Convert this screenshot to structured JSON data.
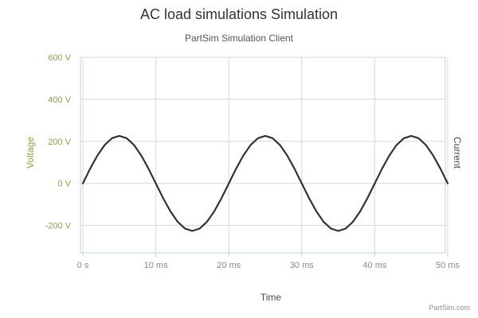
{
  "title": "AC load simulations Simulation",
  "subtitle": "PartSim Simulation Client",
  "credit": "PartSim.com",
  "colors": {
    "voltage_axis": "#89A54E",
    "current_axis": "#4A4A4A",
    "series_line": "#333333",
    "grid": "#D8D8D8",
    "axis_line": "#C0D0E0"
  },
  "chart_data": {
    "type": "line",
    "title": "AC load simulations Simulation",
    "subtitle": "PartSim Simulation Client",
    "xlabel": "Time",
    "ylabel": "Voltage",
    "ylabel_right": "Current",
    "x_unit": "ms",
    "y_unit": "V",
    "xlim": [
      0,
      50
    ],
    "ylim": [
      -330,
      600
    ],
    "x_ticks": [
      "0 s",
      "10 ms",
      "20 ms",
      "30 ms",
      "40 ms",
      "50 ms"
    ],
    "x_tick_values": [
      0,
      10,
      20,
      30,
      40,
      50
    ],
    "y_ticks": [
      "600 V",
      "400 V",
      "200 V",
      "0 V",
      "-200 V"
    ],
    "y_tick_values": [
      600,
      400,
      200,
      0,
      -200
    ],
    "grid": true,
    "series": [
      {
        "x": [
          0,
          1,
          2,
          3,
          4,
          5,
          6,
          7,
          8,
          9,
          10,
          11,
          12,
          13,
          14,
          15,
          16,
          17,
          18,
          19,
          20,
          21,
          22,
          23,
          24,
          25,
          26,
          27,
          28,
          29,
          30,
          31,
          32,
          33,
          34,
          35,
          36,
          37,
          38,
          39,
          40,
          41,
          42,
          43,
          44,
          45,
          46,
          47,
          48,
          49,
          50
        ],
        "values": [
          0,
          70,
          133,
          183,
          215,
          226,
          215,
          183,
          133,
          70,
          0,
          -70,
          -133,
          -183,
          -215,
          -226,
          -215,
          -183,
          -133,
          -70,
          0,
          70,
          133,
          183,
          215,
          226,
          215,
          183,
          133,
          70,
          0,
          -70,
          -133,
          -183,
          -215,
          -226,
          -215,
          -183,
          -133,
          -70,
          0,
          70,
          133,
          183,
          215,
          226,
          215,
          183,
          133,
          70,
          0
        ]
      }
    ]
  }
}
